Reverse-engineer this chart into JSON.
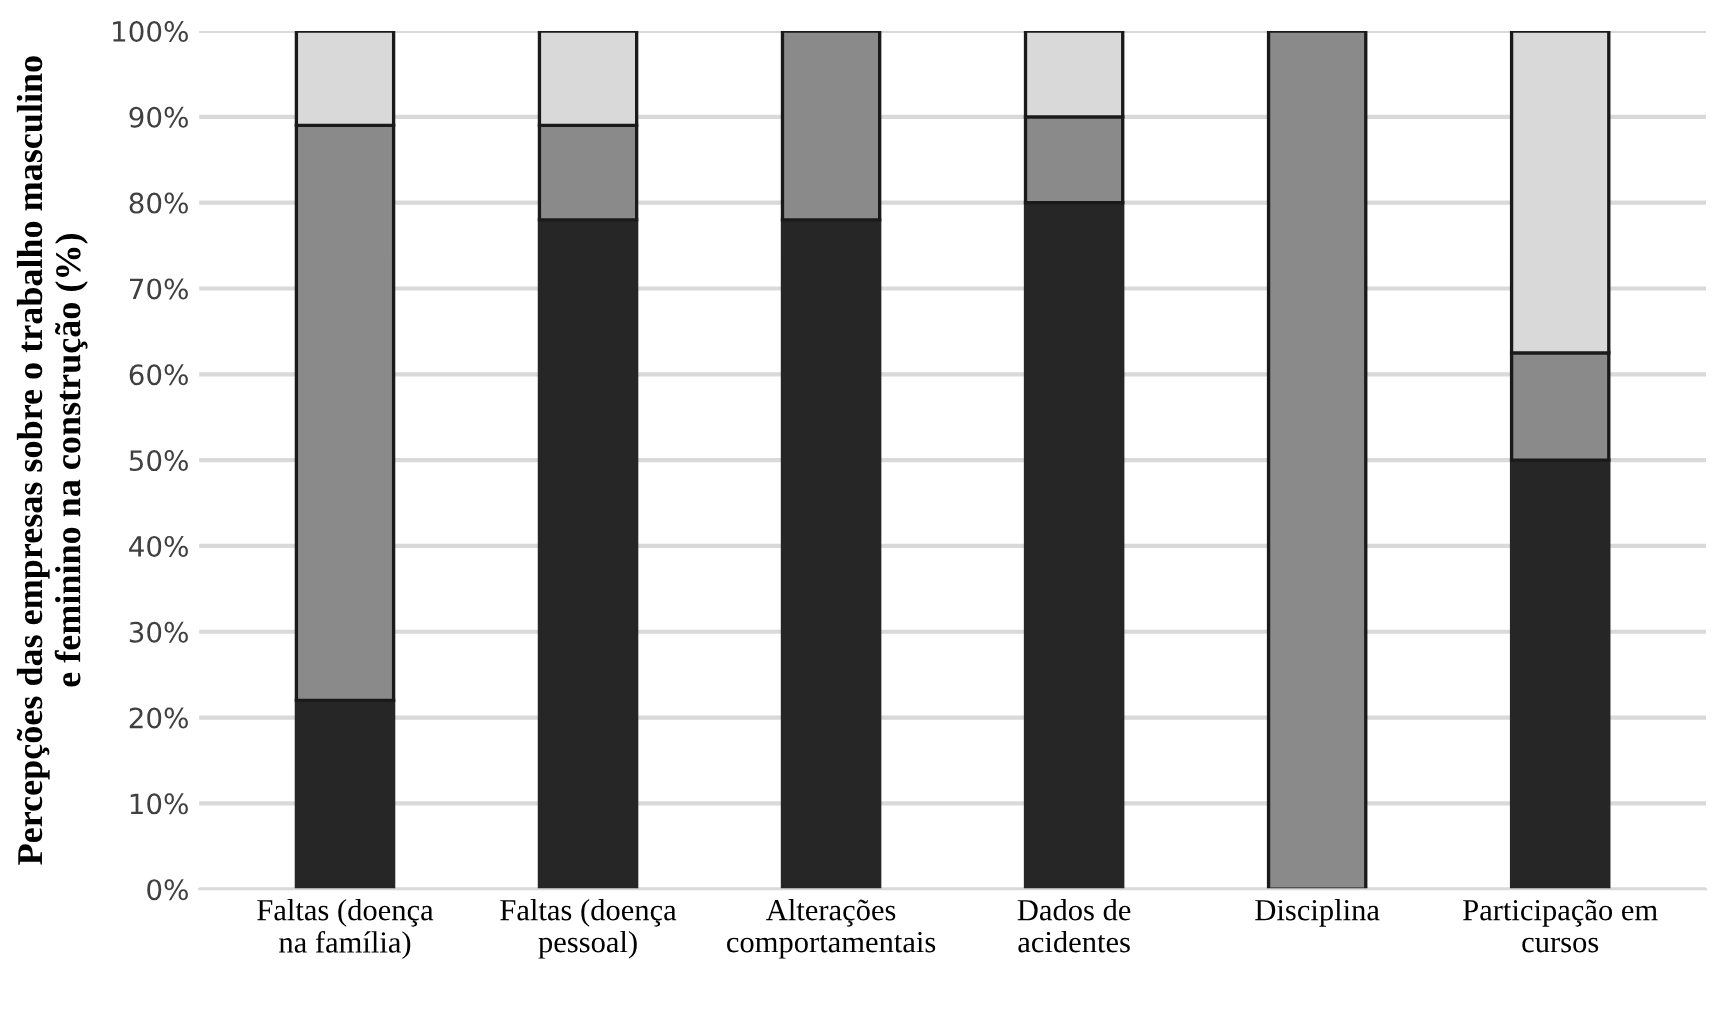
{
  "chart_data": {
    "type": "bar",
    "stacked": true,
    "ylabel": "Percepções das empresas sobre o trabalho masculino\ne feminino na construção (%)",
    "categories": [
      "Faltas (doença\nna família)",
      "Faltas (doença\npessoal)",
      "Alterações\ncomportamentais",
      "Dados de\nacidentes",
      "Disciplina",
      "Participação em\ncursos"
    ],
    "series": [
      {
        "color": "#262626",
        "values": [
          22,
          78,
          78,
          80,
          0,
          50
        ]
      },
      {
        "color": "#8a8a8a",
        "values": [
          67,
          11,
          22,
          10,
          100,
          12.5
        ]
      },
      {
        "color": "#d9d9d9",
        "values": [
          11,
          11,
          0,
          10,
          0,
          37.5
        ]
      }
    ],
    "ylim": [
      0,
      100
    ],
    "yticks": [
      {
        "value": 0,
        "label": "0%"
      },
      {
        "value": 10,
        "label": "10%"
      },
      {
        "value": 20,
        "label": "20%"
      },
      {
        "value": 30,
        "label": "30%"
      },
      {
        "value": 40,
        "label": "40%"
      },
      {
        "value": 50,
        "label": "50%"
      },
      {
        "value": 60,
        "label": "60%"
      },
      {
        "value": 70,
        "label": "70%"
      },
      {
        "value": 80,
        "label": "80%"
      },
      {
        "value": 90,
        "label": "90%"
      },
      {
        "value": 100,
        "label": "100%"
      }
    ],
    "grid": "y"
  }
}
